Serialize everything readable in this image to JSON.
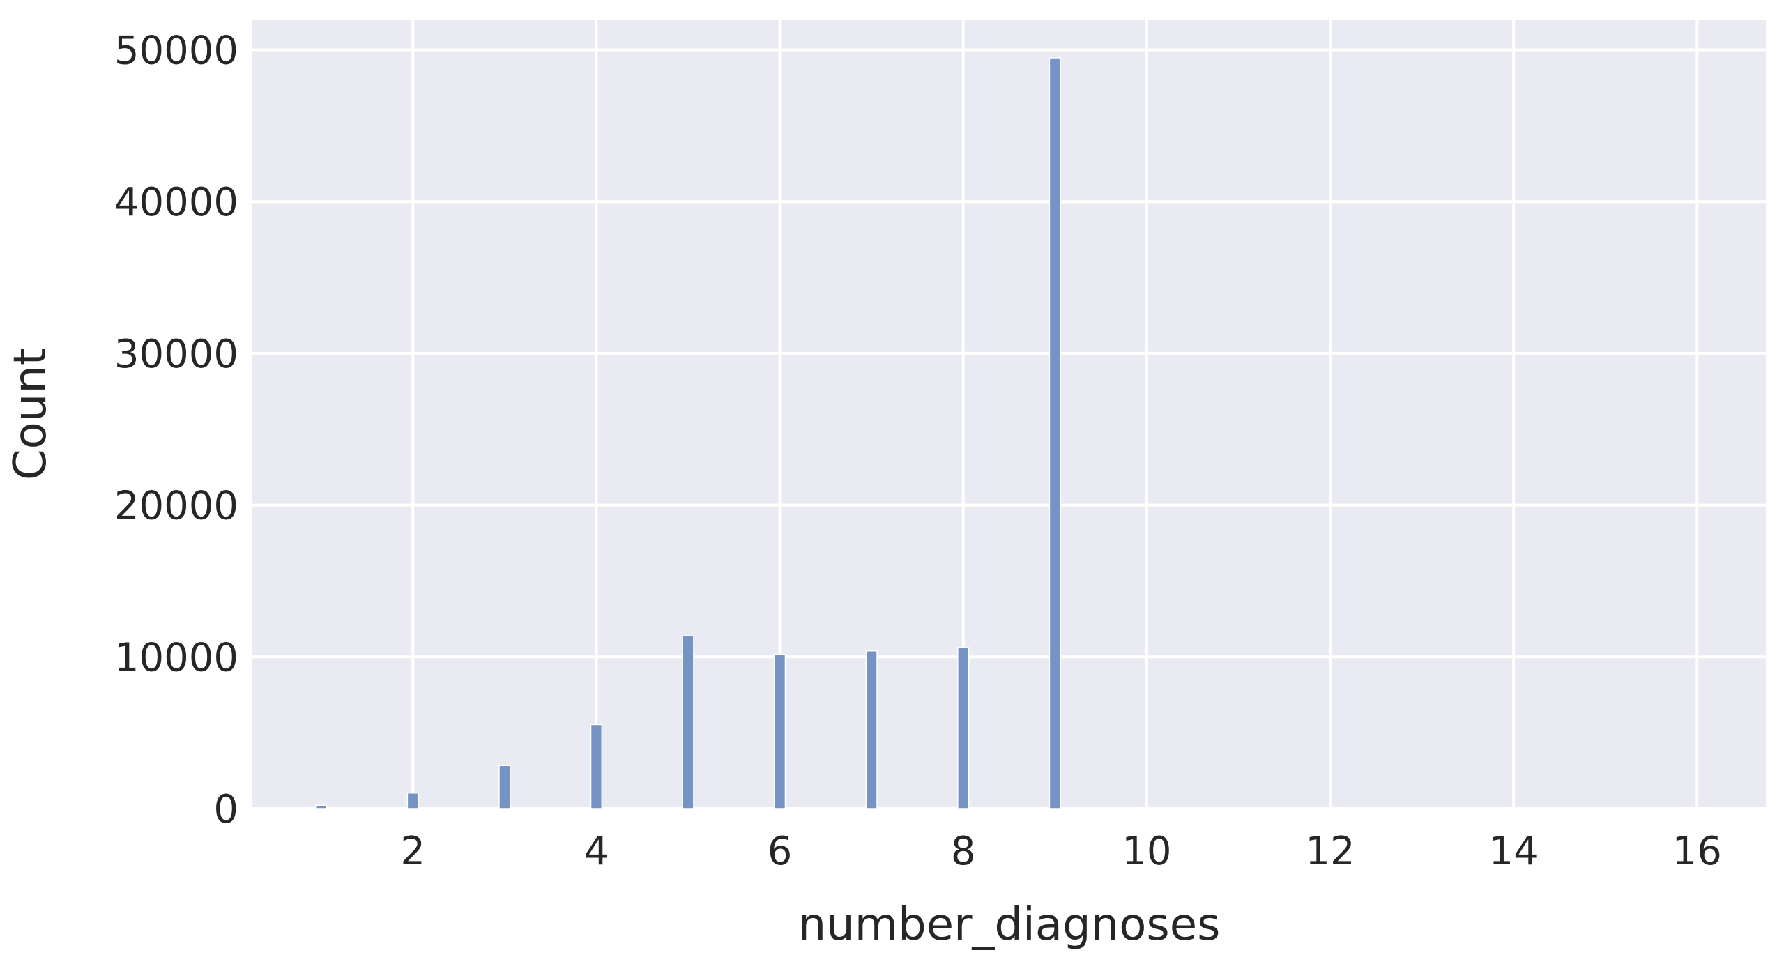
{
  "chart_data": {
    "type": "bar",
    "title": "",
    "xlabel": "number_diagnoses",
    "ylabel": "Count",
    "xlim": [
      0.25,
      16.75
    ],
    "ylim": [
      0,
      52000
    ],
    "x_ticks": [
      2,
      4,
      6,
      8,
      10,
      12,
      14,
      16
    ],
    "y_ticks": [
      0,
      10000,
      20000,
      30000,
      40000,
      50000
    ],
    "grid": true,
    "bin_width": 0.12,
    "bars": [
      {
        "x": 1,
        "value": 219
      },
      {
        "x": 2,
        "value": 1023
      },
      {
        "x": 3,
        "value": 2835
      },
      {
        "x": 4,
        "value": 5537
      },
      {
        "x": 5,
        "value": 11393
      },
      {
        "x": 6,
        "value": 10161
      },
      {
        "x": 7,
        "value": 10393
      },
      {
        "x": 8,
        "value": 10616
      },
      {
        "x": 9,
        "value": 49474
      },
      {
        "x": 10,
        "value": 17
      },
      {
        "x": 11,
        "value": 11
      },
      {
        "x": 12,
        "value": 9
      },
      {
        "x": 13,
        "value": 16
      },
      {
        "x": 14,
        "value": 7
      },
      {
        "x": 15,
        "value": 10
      },
      {
        "x": 16,
        "value": 45
      }
    ],
    "colors": {
      "background": "#eaeaf2",
      "bar_fill": "#7693c5",
      "bar_edge": "#ffffff",
      "grid": "#ffffff",
      "text": "#262626"
    }
  }
}
